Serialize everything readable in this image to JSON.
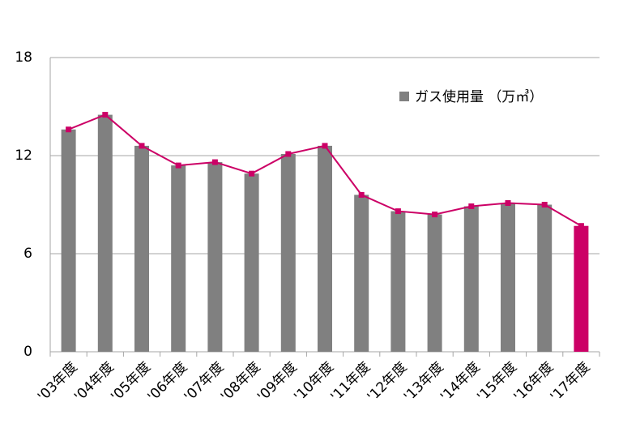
{
  "chart_data": {
    "type": "bar",
    "categories": [
      "'03年度",
      "'04年度",
      "'05年度",
      "'06年度",
      "'07年度",
      "'08年度",
      "'09年度",
      "'10年度",
      "'11年度",
      "'12年度",
      "'13年度",
      "'14年度",
      "'15年度",
      "'16年度",
      "'17年度"
    ],
    "series": [
      {
        "name": "ガス使用量 （万㎥）",
        "color": "#808080",
        "colors": [
          "#808080",
          "#808080",
          "#808080",
          "#808080",
          "#808080",
          "#808080",
          "#808080",
          "#808080",
          "#808080",
          "#808080",
          "#808080",
          "#808080",
          "#808080",
          "#808080",
          "#cc0066"
        ],
        "values": [
          13.6,
          14.5,
          12.6,
          11.4,
          11.6,
          10.9,
          12.1,
          12.6,
          9.6,
          8.6,
          8.4,
          8.9,
          9.1,
          9.0,
          7.7
        ],
        "line_color": "#cc0066"
      }
    ],
    "ylim": [
      0,
      18
    ],
    "yticks": [
      0,
      6,
      12,
      18
    ],
    "grid": true
  }
}
